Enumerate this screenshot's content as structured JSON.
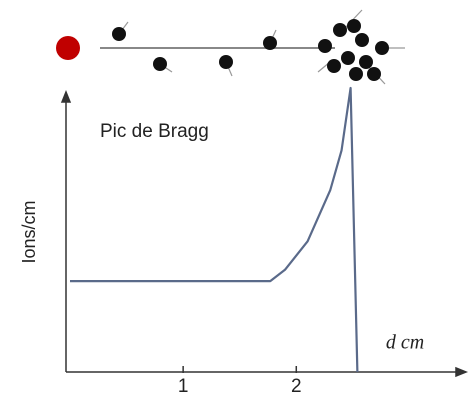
{
  "chart_data": {
    "type": "line",
    "annotation": "Pic de Bragg",
    "y_label": "Ions/cm",
    "x_label": "d cm",
    "x": [
      0,
      1.0,
      1.77,
      1.9,
      2.1,
      2.3,
      2.4,
      2.48,
      2.54
    ],
    "values": [
      32,
      32,
      32,
      36,
      46,
      64,
      78,
      100,
      0
    ],
    "color": "#5a6a8a",
    "xlim": [
      0,
      3.5
    ],
    "xticks": [
      1,
      2
    ],
    "ylim": [
      0,
      100
    ]
  }
}
